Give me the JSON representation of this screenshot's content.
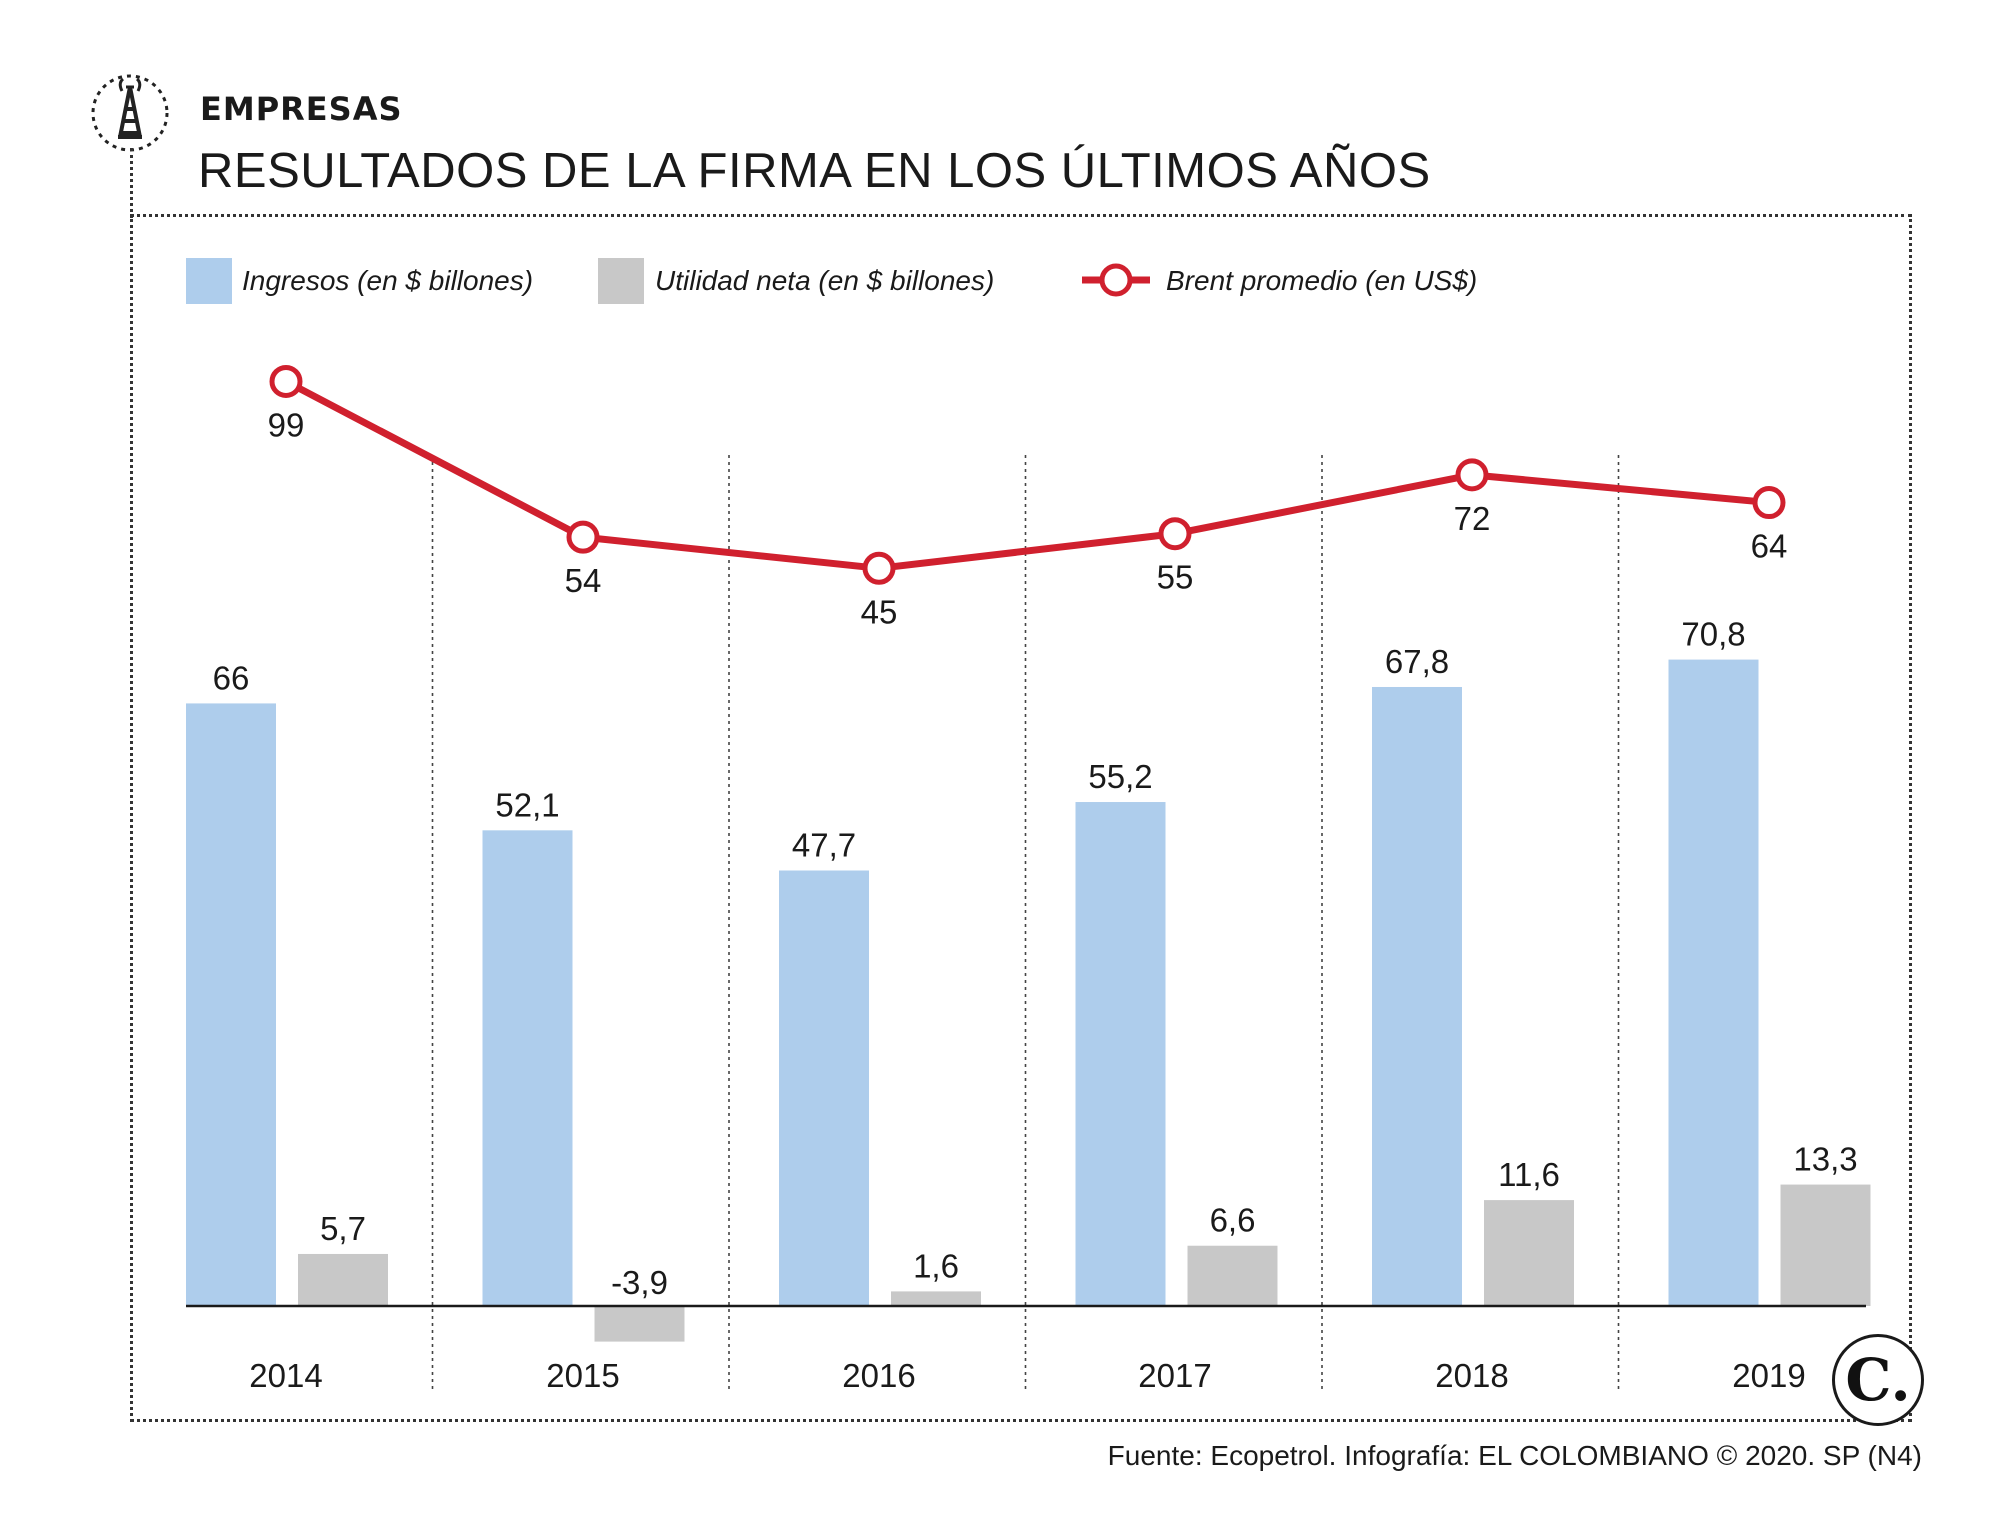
{
  "header": {
    "section": "EMPRESAS",
    "title": "RESULTADOS DE LA FIRMA EN LOS ÚLTIMOS AÑOS"
  },
  "legend": {
    "ingresos": "Ingresos (en $ billones)",
    "utilidad": "Utilidad neta (en $ billones)",
    "brent": "Brent promedio (en US$)"
  },
  "colors": {
    "ingresos": "#aecdec",
    "utilidad": "#c8c8c8",
    "brent": "#d0202e",
    "negative_label": "#d0202e"
  },
  "chart_data": {
    "type": "bar",
    "title": "RESULTADOS DE LA FIRMA EN LOS ÚLTIMOS AÑOS",
    "categories": [
      "2014",
      "2015",
      "2016",
      "2017",
      "2018",
      "2019"
    ],
    "series": [
      {
        "name": "Ingresos (en $ billones)",
        "type": "bar",
        "values": [
          66,
          52.1,
          47.7,
          55.2,
          67.8,
          70.8
        ],
        "labels": [
          "66",
          "52,1",
          "47,7",
          "55,2",
          "67,8",
          "70,8"
        ]
      },
      {
        "name": "Utilidad neta (en $ billones)",
        "type": "bar",
        "values": [
          5.7,
          -3.9,
          1.6,
          6.6,
          11.6,
          13.3
        ],
        "labels": [
          "5,7",
          "-3,9",
          "1,6",
          "6,6",
          "11,6",
          "13,3"
        ]
      },
      {
        "name": "Brent promedio (en US$)",
        "type": "line",
        "values": [
          99,
          54,
          45,
          55,
          72,
          64
        ],
        "labels": [
          "99",
          "54",
          "45",
          "55",
          "72",
          "64"
        ]
      }
    ],
    "xlabel": "",
    "ylabel": "",
    "grid": false
  },
  "footer": {
    "source": "Fuente: Ecopetrol. Infografía: EL COLOMBIANO © 2020. SP (N4)",
    "logo": "C."
  }
}
